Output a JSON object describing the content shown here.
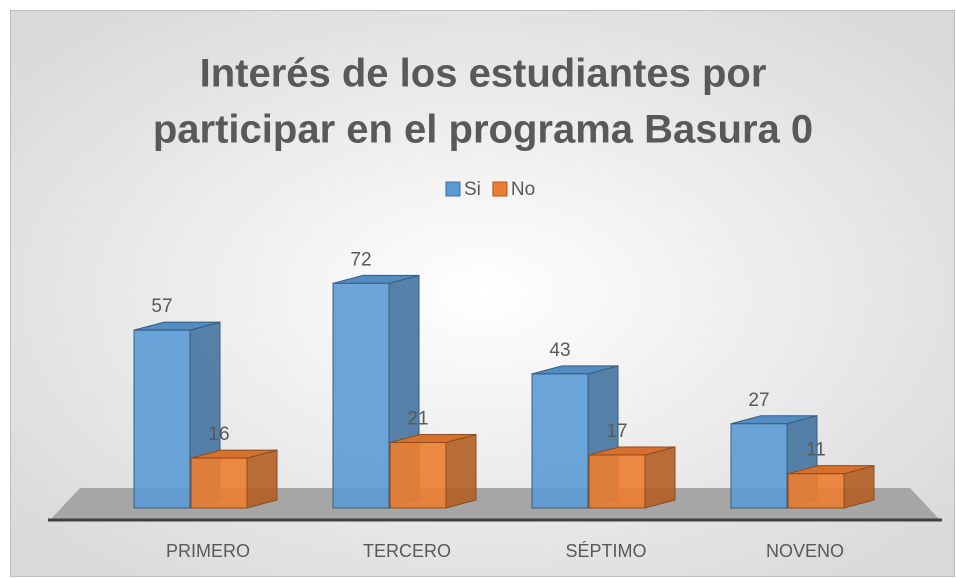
{
  "chart_data": {
    "type": "bar3d",
    "title": [
      "Interés de los estudiantes por",
      "participar en el programa Basura 0"
    ],
    "categories": [
      "PRIMERO",
      "TERCERO",
      "SÉPTIMO",
      "NOVENO"
    ],
    "series": [
      {
        "name": "Si",
        "color": "#5b9bd5",
        "values": [
          57,
          72,
          43,
          27
        ]
      },
      {
        "name": "No",
        "color": "#ed7d31",
        "values": [
          16,
          21,
          17,
          11
        ]
      }
    ],
    "legend": "top"
  }
}
